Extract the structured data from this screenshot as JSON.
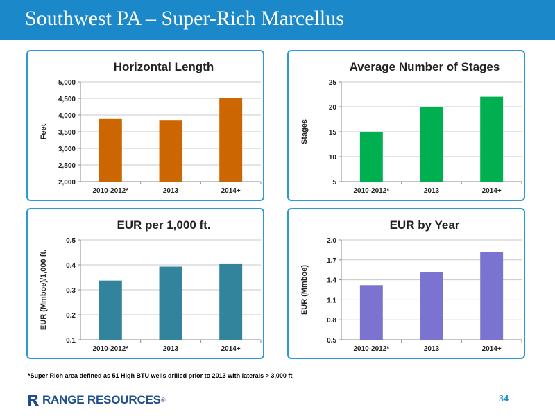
{
  "header": {
    "title": "Southwest PA – Super-Rich Marcellus"
  },
  "chart_data": [
    {
      "type": "bar",
      "title": "Horizontal Length",
      "ylabel": "Feet",
      "xlabel": "",
      "categories": [
        "2010-2012*",
        "2013",
        "2014+"
      ],
      "values": [
        3900,
        3850,
        4500
      ],
      "ylim": [
        2000,
        5000
      ],
      "yticks": [
        "2,000",
        "2,500",
        "3,000",
        "3,500",
        "4,000",
        "4,500",
        "5,000"
      ],
      "ytick_values": [
        2000,
        2500,
        3000,
        3500,
        4000,
        4500,
        5000
      ],
      "color": "#cc6600",
      "grid": true
    },
    {
      "type": "bar",
      "title": "Average Number of Stages",
      "ylabel": "Stages",
      "xlabel": "",
      "categories": [
        "2010-2012*",
        "2013",
        "2014+"
      ],
      "values": [
        15,
        20,
        22
      ],
      "ylim": [
        5,
        25
      ],
      "yticks": [
        "5",
        "10",
        "15",
        "20",
        "25"
      ],
      "ytick_values": [
        5,
        10,
        15,
        20,
        25
      ],
      "color": "#00b050",
      "grid": true
    },
    {
      "type": "bar",
      "title": "EUR per 1,000 ft.",
      "ylabel": "EUR (Mmboe)/1,000 ft.",
      "xlabel": "",
      "categories": [
        "2010-2012*",
        "2013",
        "2014+"
      ],
      "values": [
        0.337,
        0.393,
        0.403
      ],
      "ylim": [
        0.1,
        0.5
      ],
      "yticks": [
        "0.1",
        "0.2",
        "0.3",
        "0.4",
        "0.5"
      ],
      "ytick_values": [
        0.1,
        0.2,
        0.3,
        0.4,
        0.5
      ],
      "color": "#31849b",
      "grid": true
    },
    {
      "type": "bar",
      "title": "EUR by Year",
      "ylabel": "EUR (Mmboe)",
      "xlabel": "",
      "categories": [
        "2010-2012*",
        "2013",
        "2014+"
      ],
      "values": [
        1.32,
        1.52,
        1.82
      ],
      "ylim": [
        0.5,
        2.0
      ],
      "yticks": [
        "0.5",
        "0.8",
        "1.1",
        "1.4",
        "1.7",
        "2.0"
      ],
      "ytick_values": [
        0.5,
        0.8,
        1.1,
        1.4,
        1.7,
        2.0
      ],
      "color": "#7b73d0",
      "grid": true
    }
  ],
  "footnote": "*Super Rich area defined as 51 High BTU wells drilled prior to 2013 with laterals > 3,000 ft",
  "footer": {
    "logo_text": "RANGE RESOURCES",
    "logo_mark": "®",
    "page_number": "34"
  },
  "colors": {
    "header": "#1a88c9",
    "panel_border": "#2b9bd6",
    "logo": "#1f4e8c"
  }
}
